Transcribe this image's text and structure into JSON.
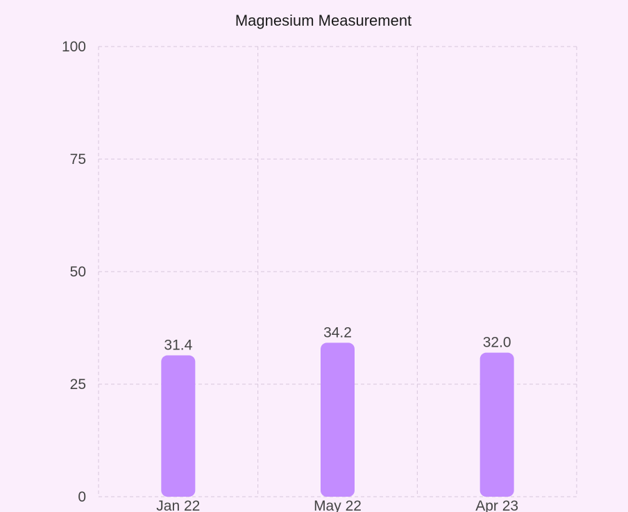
{
  "chart_data": {
    "type": "bar",
    "title": "Magnesium Measurement",
    "xlabel": "",
    "ylabel": "",
    "categories": [
      "Jan 22",
      "May 22",
      "Apr 23"
    ],
    "values": [
      31.4,
      34.2,
      32.0
    ],
    "value_labels": [
      "31.4",
      "34.2",
      "32.0"
    ],
    "ylim": [
      0,
      100
    ],
    "yticks": [
      0,
      25,
      50,
      75,
      100
    ],
    "ytick_labels": [
      "0",
      "25",
      "50",
      "75",
      "100"
    ],
    "grid": true,
    "legend": "none",
    "bar_color": "#c38cff",
    "background_color": "#fbeefc",
    "grid_color": "#d7c6dc"
  }
}
